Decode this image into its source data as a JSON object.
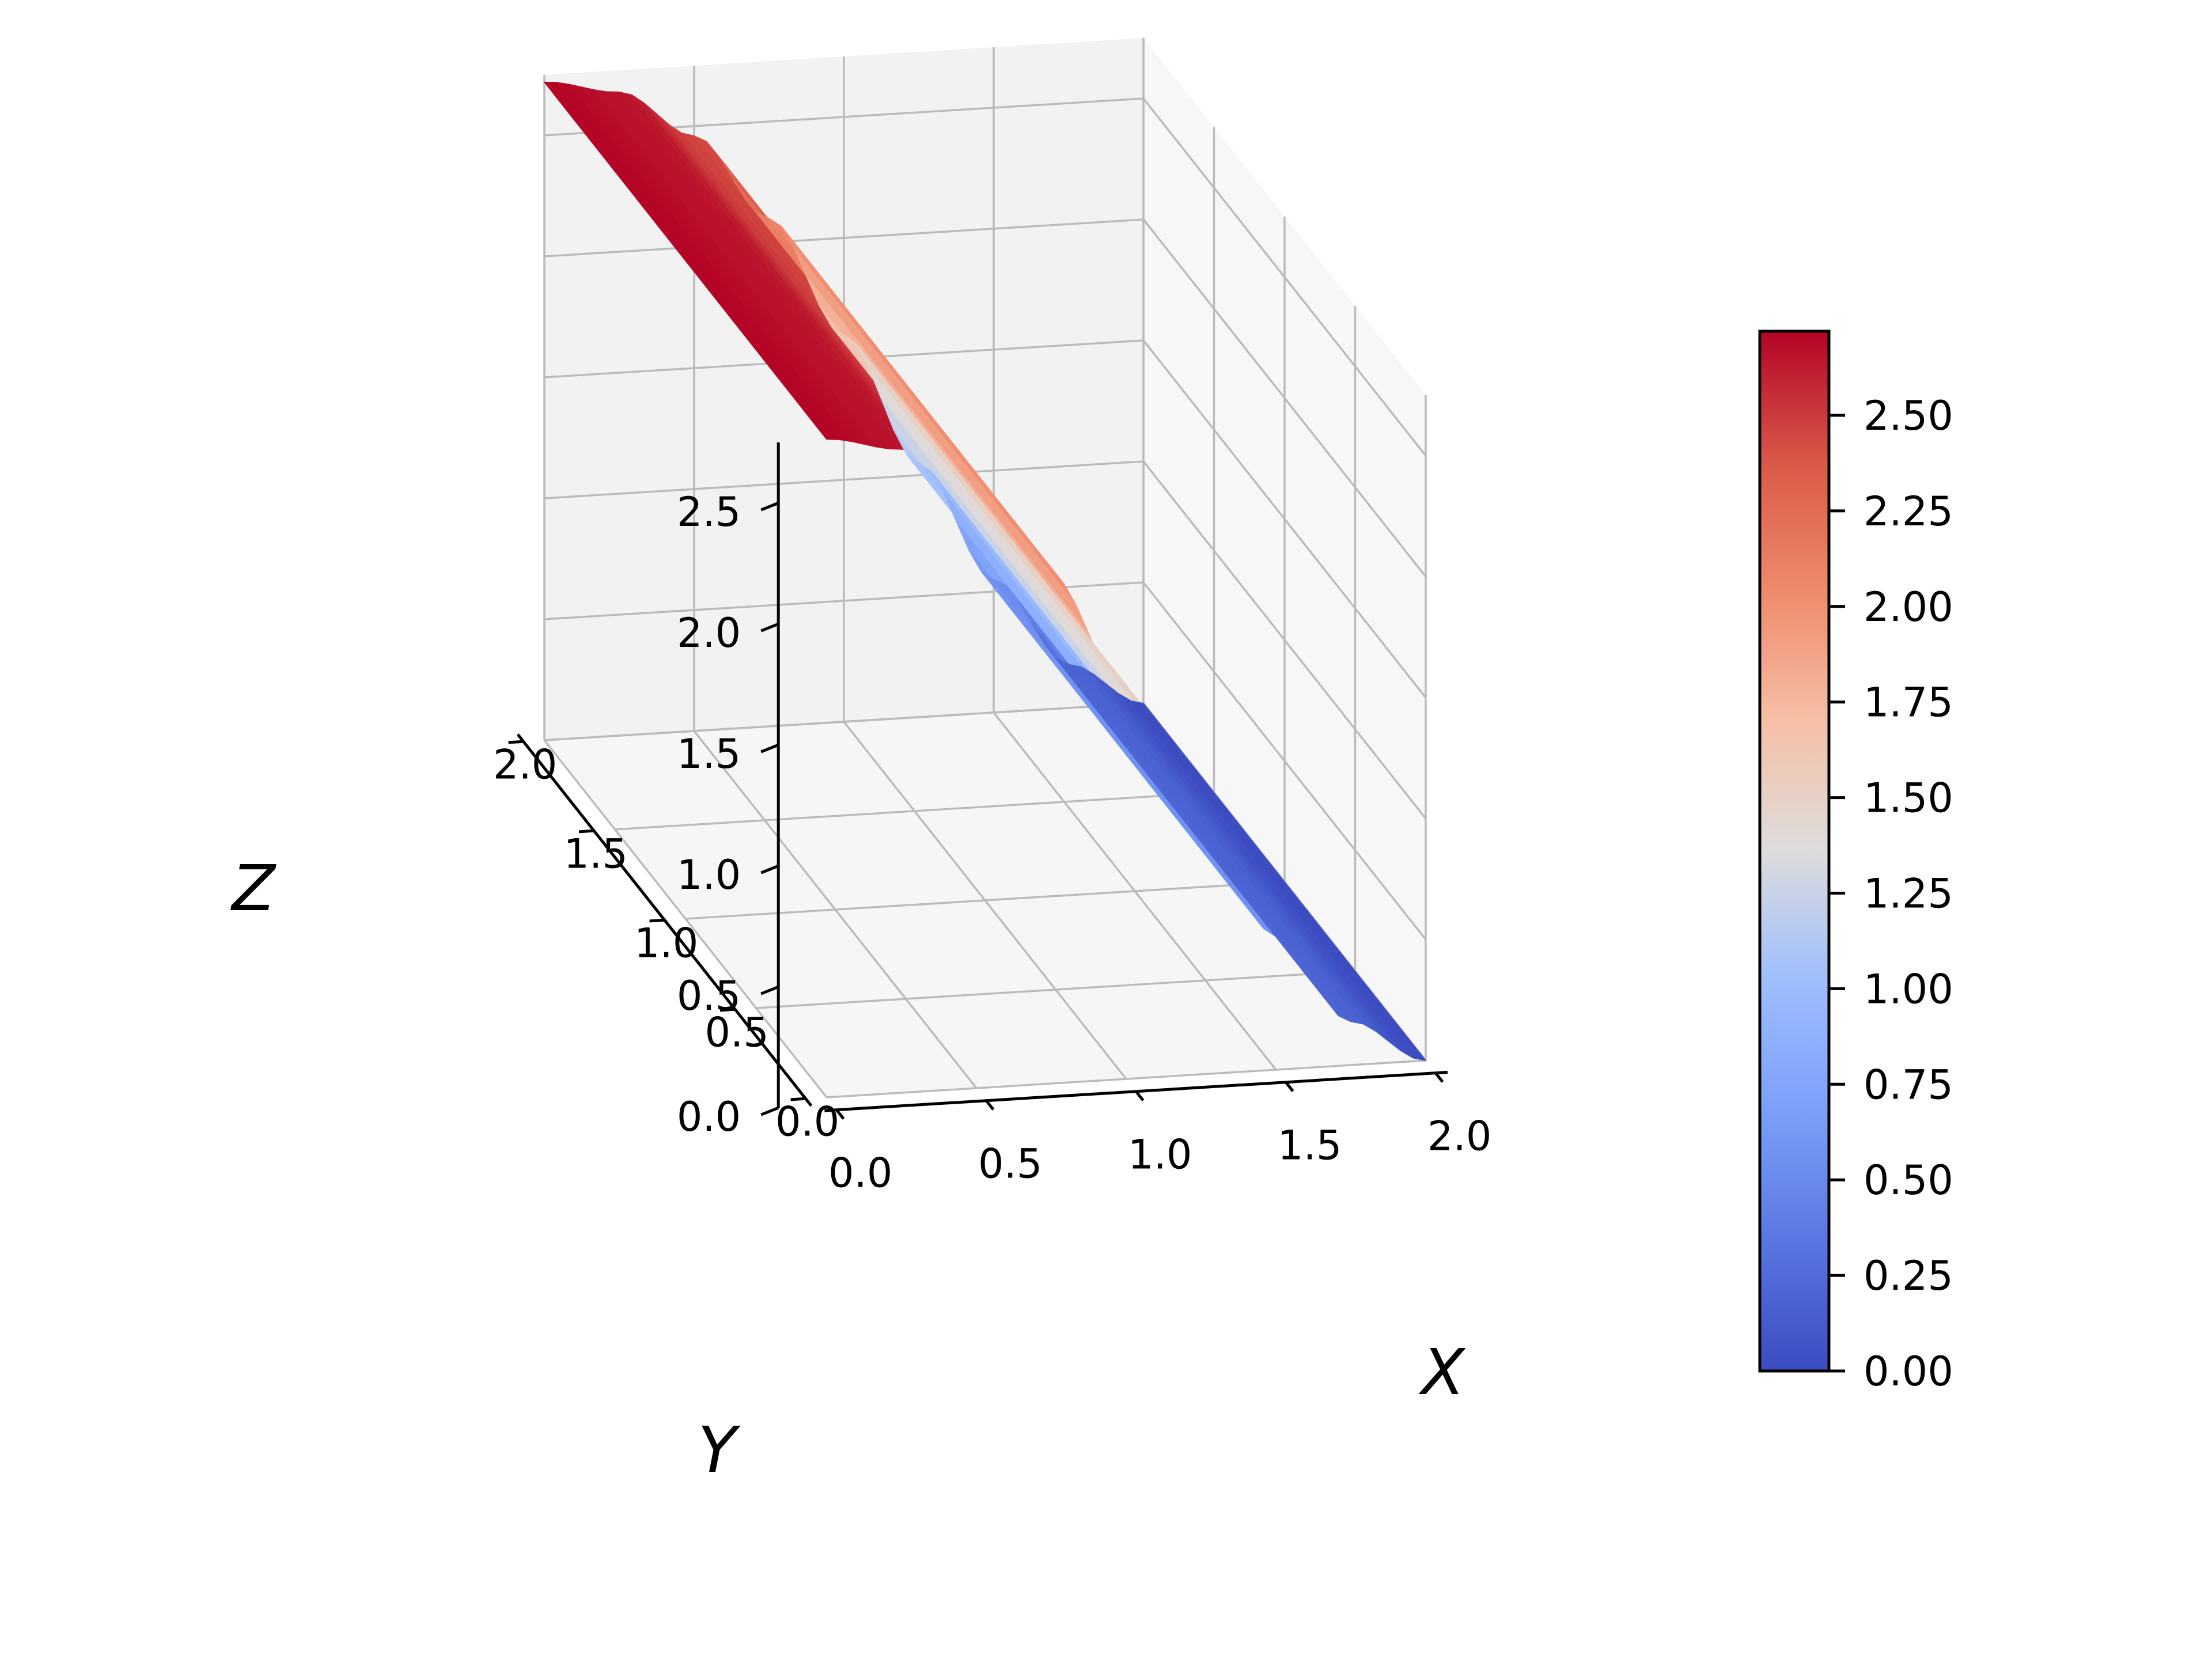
{
  "chart_data": {
    "type": "surface",
    "colormap": "coolwarm",
    "xlabel": "X",
    "ylabel": "Y",
    "zlabel": "Z",
    "x_range": [
      0,
      2
    ],
    "y_range": [
      0,
      2
    ],
    "z_range": [
      0,
      2.75
    ],
    "x_ticks": [
      "0.0",
      "0.5",
      "1.0",
      "1.5",
      "2.0"
    ],
    "y_ticks": [
      "0.0",
      "0.5",
      "1.0",
      "1.5",
      "2.0"
    ],
    "z_ticks": [
      "0.0",
      "0.5",
      "1.0",
      "1.5",
      "2.0",
      "2.5"
    ],
    "colorbar": {
      "range": [
        0,
        2.72
      ],
      "ticks": [
        "0.00",
        "0.25",
        "0.50",
        "0.75",
        "1.00",
        "1.25",
        "1.50",
        "1.75",
        "2.00",
        "2.25",
        "2.50"
      ]
    },
    "surface_grid": {
      "x": [
        0.0,
        0.25,
        0.5,
        0.75,
        1.0,
        1.25,
        1.5,
        1.75,
        2.0
      ],
      "y": [
        0.0,
        0.25,
        0.5,
        0.75,
        1.0,
        1.25,
        1.5,
        1.75,
        2.0
      ],
      "z_rows_by_y": [
        [
          2.72,
          2.72,
          2.72,
          2.72,
          2.72,
          2.72,
          2.72,
          2.72,
          2.72
        ],
        [
          2.66,
          2.66,
          2.66,
          2.66,
          2.66,
          2.66,
          2.66,
          2.66,
          2.66
        ],
        [
          2.46,
          2.46,
          2.46,
          2.46,
          2.46,
          2.46,
          2.46,
          2.46,
          2.46
        ],
        [
          2.1,
          2.1,
          2.1,
          2.1,
          2.1,
          2.1,
          2.1,
          2.1,
          2.1
        ],
        [
          1.6,
          1.6,
          1.6,
          1.6,
          1.6,
          1.6,
          1.6,
          1.6,
          1.6
        ],
        [
          1.05,
          1.05,
          1.05,
          1.05,
          1.05,
          1.05,
          1.05,
          1.05,
          1.05
        ],
        [
          0.55,
          0.55,
          0.55,
          0.55,
          0.55,
          0.55,
          0.55,
          0.55,
          0.55
        ],
        [
          0.18,
          0.18,
          0.18,
          0.18,
          0.18,
          0.18,
          0.18,
          0.18,
          0.18
        ],
        [
          0.0,
          0.0,
          0.0,
          0.0,
          0.0,
          0.0,
          0.0,
          0.0,
          0.0
        ]
      ]
    }
  }
}
